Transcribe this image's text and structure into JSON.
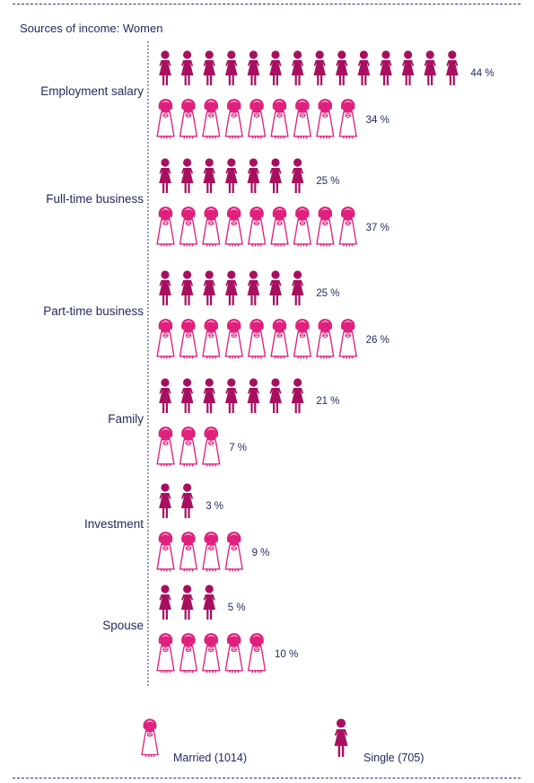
{
  "chart_data": {
    "type": "bar",
    "title": "Sources of income: Women",
    "categories": [
      "Employment salary",
      "Full-time business",
      "Part-time business",
      "Family",
      "Investment",
      "Spouse"
    ],
    "series": [
      {
        "name": "Single (705)",
        "values": [
          44,
          25,
          25,
          21,
          3,
          5
        ]
      },
      {
        "name": "Married (1014)",
        "values": [
          34,
          37,
          26,
          7,
          9,
          10
        ]
      }
    ],
    "unit_suffix": " %",
    "icon_counts": {
      "Single (705)": [
        14,
        7,
        7,
        7,
        2,
        3
      ],
      "Married (1014)": [
        9,
        9,
        9,
        3,
        4,
        5
      ]
    },
    "colors": {
      "single": "#a8105f",
      "married": "#e0207d",
      "text": "#1f2a5a"
    },
    "legend": {
      "married_label": "Married (1014)",
      "single_label": "Single (705)",
      "placement": "bottom"
    }
  }
}
